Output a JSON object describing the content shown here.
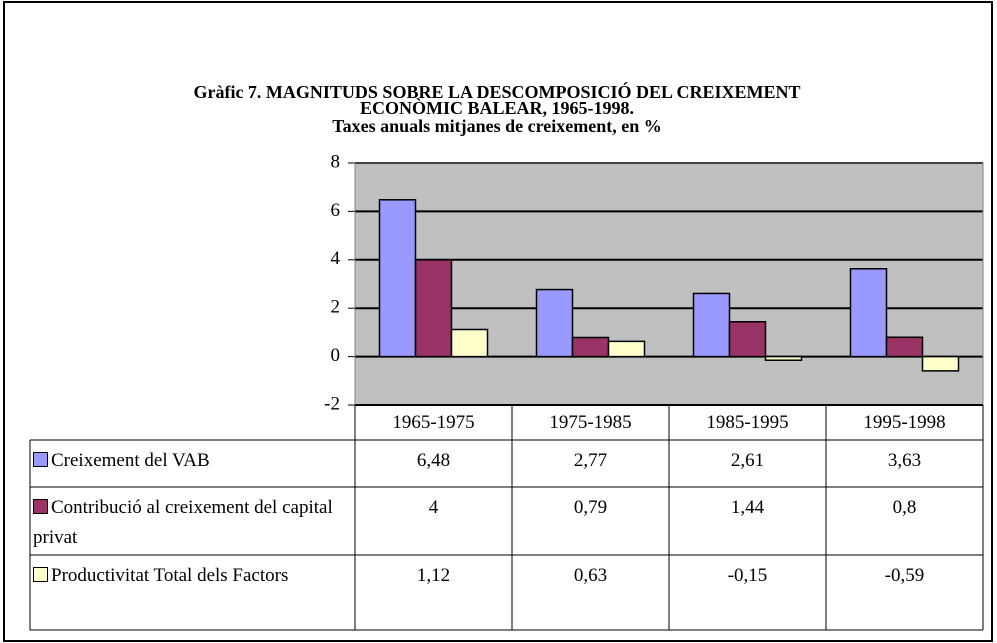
{
  "chart_data": {
    "type": "bar",
    "title": "Gràfic 7. MAGNITUDS SOBRE LA DESCOMPOSICIÓ DEL CREIXEMENT ECONÒMIC BALEAR, 1965-1998.",
    "subtitle": "Taxes anuals mitjanes de creixement, en %",
    "categories": [
      "1965-1975",
      "1975-1985",
      "1985-1995",
      "1995-1998"
    ],
    "series": [
      {
        "name": "Creixement del VAB",
        "color": "#9999ff",
        "values": [
          6.48,
          2.77,
          2.61,
          3.63
        ],
        "value_labels": [
          "6,48",
          "2,77",
          "2,61",
          "3,63"
        ]
      },
      {
        "name": "Contribució al creixement del capital privat",
        "color": "#993366",
        "values": [
          4,
          0.79,
          1.44,
          0.8
        ],
        "value_labels": [
          "4",
          "0,79",
          "1,44",
          "0,8"
        ]
      },
      {
        "name": "Productivitat Total dels Factors",
        "color": "#ffffcc",
        "values": [
          1.12,
          0.63,
          -0.15,
          -0.59
        ],
        "value_labels": [
          "1,12",
          "0,63",
          "-0,15",
          "-0,59"
        ]
      }
    ],
    "ylim": [
      -2,
      8
    ],
    "yticks": [
      -2,
      0,
      2,
      4,
      6,
      8
    ],
    "grid": true,
    "plot_background": "#c0c0c0"
  }
}
